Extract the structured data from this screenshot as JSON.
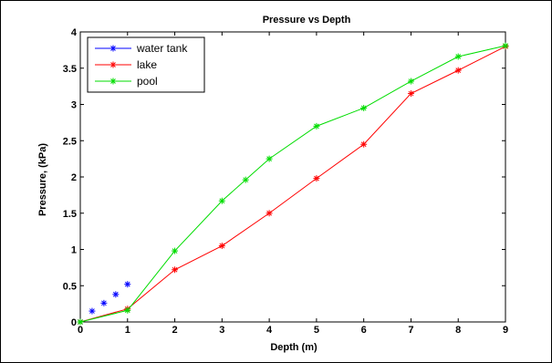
{
  "chart_data": {
    "type": "line",
    "title": "Pressure vs Depth",
    "xlabel": "Depth (m)",
    "ylabel": "Pressure, (kPa)",
    "xlim": [
      0,
      9
    ],
    "ylim": [
      0,
      4
    ],
    "xticks": [
      "0",
      "1",
      "2",
      "3",
      "4",
      "5",
      "6",
      "7",
      "8",
      "9"
    ],
    "yticks": [
      "0",
      "0.5",
      "1",
      "1.5",
      "2",
      "2.5",
      "3",
      "3.5",
      "4"
    ],
    "grid": false,
    "legend_position": "top-left",
    "series": [
      {
        "name": "water tank",
        "color": "#0000ff",
        "marker": "asterisk",
        "line": false,
        "x": [
          0,
          0.25,
          0.5,
          0.75,
          1.0
        ],
        "y": [
          0,
          0.15,
          0.26,
          0.38,
          0.52
        ]
      },
      {
        "name": "lake",
        "color": "#ff0000",
        "marker": "asterisk",
        "line": true,
        "x": [
          0,
          1,
          2,
          3,
          4,
          5,
          6,
          7,
          8,
          9
        ],
        "y": [
          0,
          0.18,
          0.72,
          1.05,
          1.5,
          1.98,
          2.45,
          3.15,
          3.47,
          3.8
        ]
      },
      {
        "name": "pool",
        "color": "#00dd00",
        "marker": "asterisk",
        "line": true,
        "x": [
          0,
          1,
          2,
          3,
          3.5,
          4,
          5,
          6,
          7,
          8,
          9
        ],
        "y": [
          0,
          0.16,
          0.98,
          1.67,
          1.96,
          2.25,
          2.7,
          2.95,
          3.32,
          3.66,
          3.81
        ]
      }
    ]
  }
}
